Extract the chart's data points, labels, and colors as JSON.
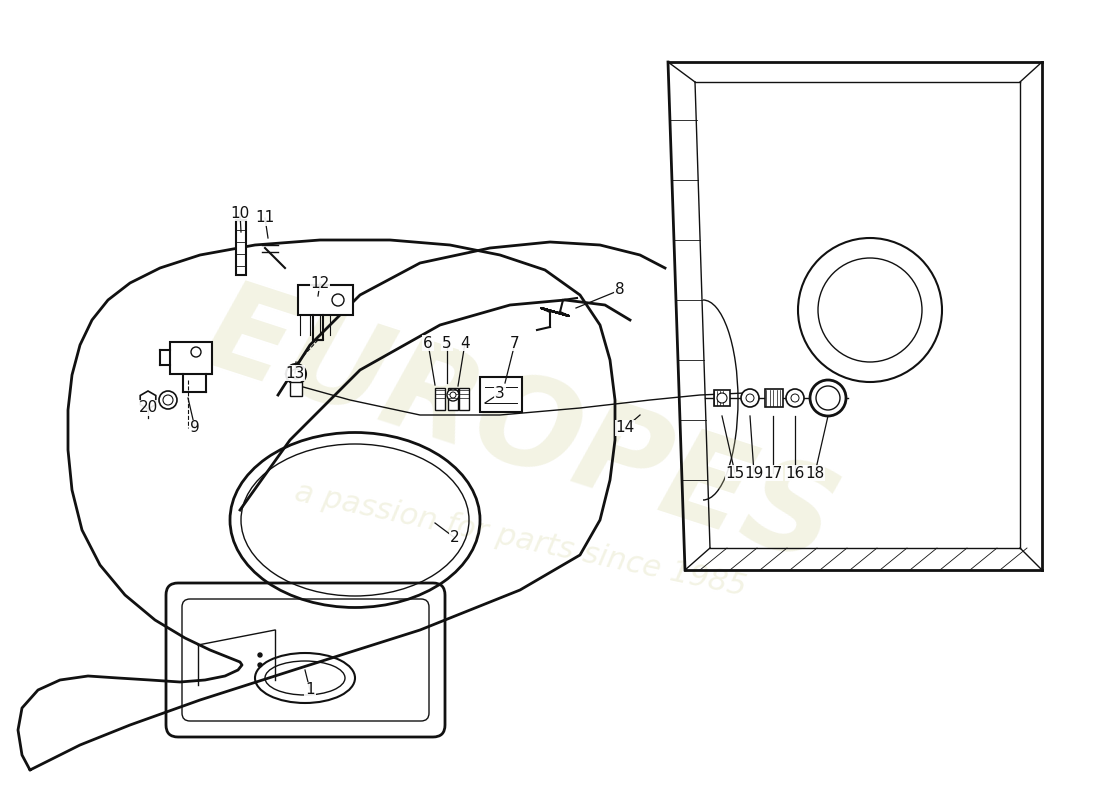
{
  "background_color": "#ffffff",
  "line_color": "#111111",
  "watermark1": "EUROPES",
  "watermark2": "a passion for parts since 1985",
  "figsize": [
    11.0,
    8.0
  ],
  "dpi": 100,
  "labels": [
    [
      "1",
      310,
      690
    ],
    [
      "2",
      455,
      540
    ],
    [
      "3",
      500,
      395
    ],
    [
      "4",
      465,
      345
    ],
    [
      "5",
      447,
      345
    ],
    [
      "6",
      428,
      345
    ],
    [
      "7",
      515,
      345
    ],
    [
      "8",
      620,
      290
    ],
    [
      "9",
      195,
      430
    ],
    [
      "10",
      240,
      215
    ],
    [
      "11",
      265,
      220
    ],
    [
      "12",
      320,
      285
    ],
    [
      "13",
      295,
      375
    ],
    [
      "14",
      625,
      430
    ],
    [
      "15",
      735,
      475
    ],
    [
      "16",
      795,
      475
    ],
    [
      "17",
      773,
      475
    ],
    [
      "18",
      815,
      475
    ],
    [
      "19",
      754,
      475
    ],
    [
      "20",
      148,
      410
    ]
  ]
}
